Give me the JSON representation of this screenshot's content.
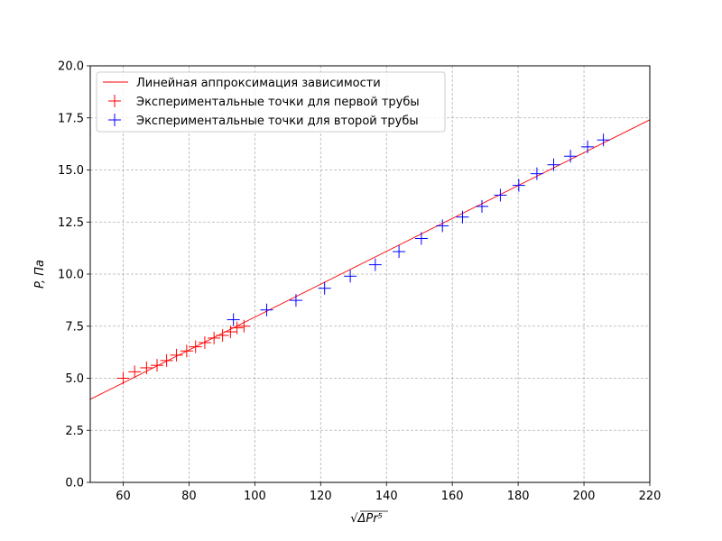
{
  "chart_data": {
    "type": "scatter",
    "xlabel": "√ΔPr⁵",
    "ylabel": "P, Па",
    "xlim": [
      50,
      220
    ],
    "ylim": [
      0,
      20
    ],
    "x_ticks": [
      "60",
      "80",
      "100",
      "120",
      "140",
      "160",
      "180",
      "200",
      "220"
    ],
    "y_ticks": [
      "0.0",
      "2.5",
      "5.0",
      "7.5",
      "10.0",
      "12.5",
      "15.0",
      "17.5",
      "20.0"
    ],
    "grid": true,
    "legend_position": "top-left",
    "fit_line": {
      "name": "Линейная аппроксимация зависимости",
      "color": "#ff0000",
      "points": [
        [
          50,
          3.99
        ],
        [
          220,
          17.41
        ]
      ]
    },
    "series": [
      {
        "name": "Экспериментальные точки для первой трубы",
        "color": "#ff0000",
        "marker": "+",
        "points": [
          [
            60.0,
            5.0
          ],
          [
            63.5,
            5.31
          ],
          [
            67.1,
            5.5
          ],
          [
            70.3,
            5.62
          ],
          [
            73.2,
            5.85
          ],
          [
            76.2,
            6.11
          ],
          [
            79.3,
            6.31
          ],
          [
            82.0,
            6.51
          ],
          [
            84.8,
            6.71
          ],
          [
            87.6,
            6.93
          ],
          [
            90.2,
            7.06
          ],
          [
            92.6,
            7.23
          ],
          [
            94.6,
            7.42
          ],
          [
            96.7,
            7.5
          ]
        ]
      },
      {
        "name": "Экспериментальные точки для второй трубы",
        "color": "#0000ff",
        "marker": "+",
        "points": [
          [
            93.5,
            7.81
          ],
          [
            103.6,
            8.28
          ],
          [
            112.5,
            8.74
          ],
          [
            121.2,
            9.32
          ],
          [
            129.0,
            9.9
          ],
          [
            136.6,
            10.45
          ],
          [
            143.8,
            11.08
          ],
          [
            150.6,
            11.71
          ],
          [
            157.0,
            12.32
          ],
          [
            163.1,
            12.74
          ],
          [
            169.0,
            13.25
          ],
          [
            174.6,
            13.79
          ],
          [
            180.2,
            14.26
          ],
          [
            185.7,
            14.82
          ],
          [
            190.8,
            15.25
          ],
          [
            195.9,
            15.66
          ],
          [
            201.1,
            16.11
          ],
          [
            205.9,
            16.44
          ]
        ]
      }
    ]
  }
}
